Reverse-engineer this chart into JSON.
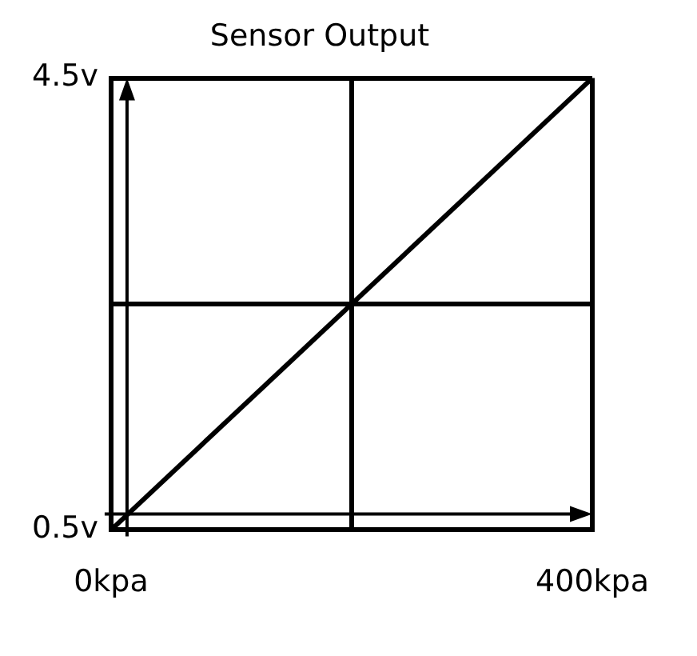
{
  "chart_data": {
    "type": "line",
    "title": "Sensor Output",
    "x": [
      0,
      400
    ],
    "series": [
      {
        "color": "#000000",
        "values": [
          0.5,
          4.5
        ]
      }
    ],
    "xlim": [
      0,
      400
    ],
    "xticks": [
      {
        "value": 0,
        "label": "0kpa"
      },
      {
        "value": 200,
        "label": null
      },
      {
        "value": 400,
        "label": "400kpa"
      }
    ],
    "ylim": [
      0.5,
      4.5
    ],
    "yticks": [
      {
        "value": 0.5,
        "label": "0.5v"
      },
      {
        "value": 2.5,
        "label": null
      },
      {
        "value": 4.5,
        "label": "4.5v"
      }
    ],
    "grid": true,
    "legend": false,
    "marker": "none",
    "line_style": "solid"
  }
}
